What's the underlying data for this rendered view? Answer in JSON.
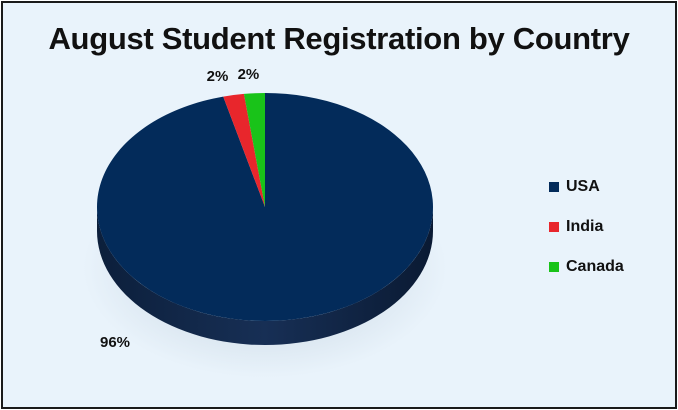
{
  "chart_data": {
    "type": "pie",
    "title": "August Student Registration by Country",
    "categories": [
      "USA",
      "India",
      "Canada"
    ],
    "values": [
      96,
      2,
      2
    ],
    "data_labels": [
      "96%",
      "2%",
      "2%"
    ],
    "colors": [
      "#032b5a",
      "#e8262c",
      "#19c319"
    ],
    "legend_position": "right"
  }
}
